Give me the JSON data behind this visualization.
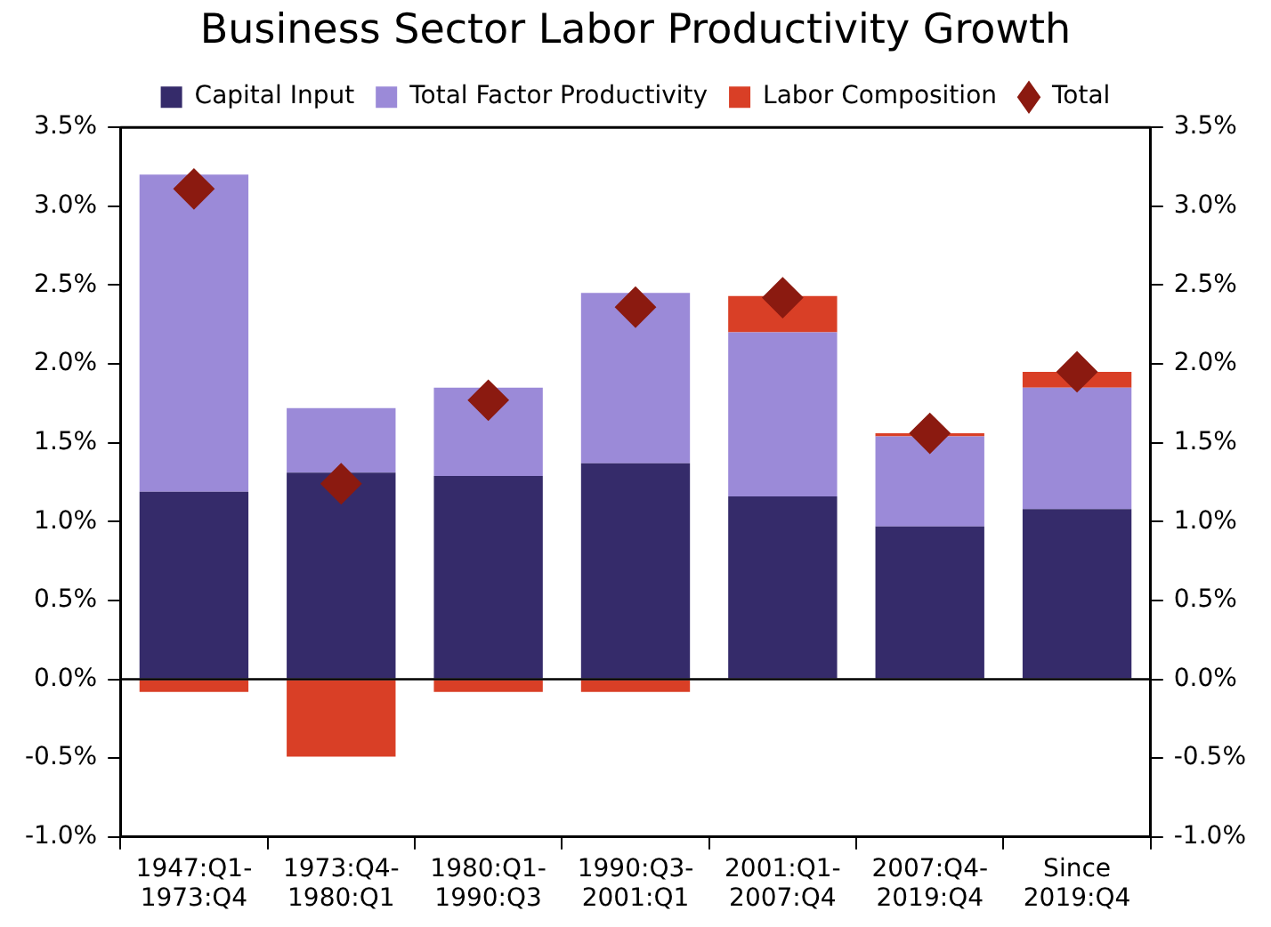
{
  "chart_data": {
    "type": "bar",
    "title": "Business Sector Labor Productivity Growth",
    "stacked": true,
    "legend": "top",
    "grid": false,
    "marker": "diamond",
    "categories": [
      "1947:Q1-\n1973:Q4",
      "1973:Q4-\n1980:Q1",
      "1980:Q1-\n1990:Q3",
      "1990:Q3-\n2001:Q1",
      "2001:Q1-\n2007:Q4",
      "2007:Q4-\n2019:Q4",
      "Since\n2019:Q4"
    ],
    "series": [
      {
        "name": "Capital Input",
        "color": "#352b6a",
        "values": [
          1.19,
          1.31,
          1.29,
          1.37,
          1.16,
          0.97,
          1.08
        ]
      },
      {
        "name": "Total Factor Productivity",
        "color": "#9b8ad8",
        "values": [
          2.01,
          0.41,
          0.56,
          1.08,
          1.04,
          0.57,
          0.77
        ]
      },
      {
        "name": "Labor Composition",
        "color": "#d93f26",
        "values": [
          -0.08,
          -0.49,
          -0.08,
          -0.08,
          0.23,
          0.02,
          0.1
        ]
      },
      {
        "name": "Total",
        "type": "scatter",
        "color": "#8b1a10",
        "x": [
          "1947:Q1-\n1973:Q4",
          "1973:Q4-\n1980:Q1",
          "1980:Q1-\n1990:Q3",
          "1990:Q3-\n2001:Q1",
          "2001:Q1-\n2007:Q4",
          "2007:Q4-\n2019:Q4",
          "Since\n2019:Q4"
        ],
        "values": [
          3.11,
          1.24,
          1.77,
          2.36,
          2.42,
          1.56,
          1.95
        ]
      }
    ],
    "ref_lines": [
      {
        "axis": "y",
        "value": 0
      }
    ],
    "ylim": [
      -1,
      3.5
    ],
    "yticks": [
      {
        "value": -1,
        "label": "-1.0%"
      },
      {
        "value": -0.5,
        "label": "-0.5%"
      },
      {
        "value": 0,
        "label": "0.0%"
      },
      {
        "value": 0.5,
        "label": "0.5%"
      },
      {
        "value": 1,
        "label": "1.0%"
      },
      {
        "value": 1.5,
        "label": "1.5%"
      },
      {
        "value": 2,
        "label": "2.0%"
      },
      {
        "value": 2.5,
        "label": "2.5%"
      },
      {
        "value": 3,
        "label": "3.0%"
      },
      {
        "value": 3.5,
        "label": "3.5%"
      }
    ],
    "y2lim": [
      -1,
      3.5
    ],
    "y2ticks": [
      {
        "value": -1,
        "label": "-1.0%"
      },
      {
        "value": -0.5,
        "label": "-0.5%"
      },
      {
        "value": 0,
        "label": "0.0%"
      },
      {
        "value": 0.5,
        "label": "0.5%"
      },
      {
        "value": 1,
        "label": "1.0%"
      },
      {
        "value": 1.5,
        "label": "1.5%"
      },
      {
        "value": 2,
        "label": "2.0%"
      },
      {
        "value": 2.5,
        "label": "2.5%"
      },
      {
        "value": 3,
        "label": "3.0%"
      },
      {
        "value": 3.5,
        "label": "3.5%"
      }
    ]
  }
}
